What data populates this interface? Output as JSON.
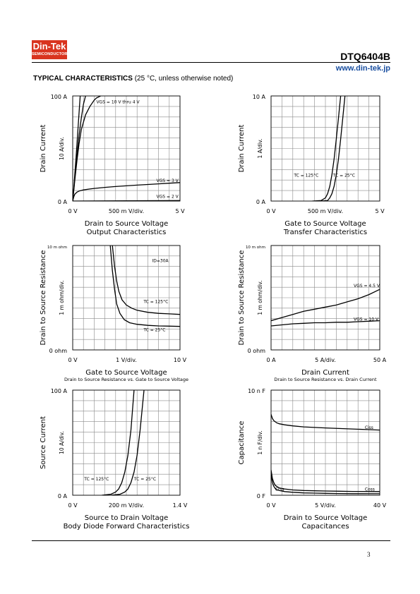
{
  "header": {
    "logo_line1": "Din-Tek",
    "logo_line2": "SEMICONDUCTOR",
    "part_number": "DTQ6404B",
    "url": "www.din-tek.jp",
    "section_title": "TYPICAL CHARACTERISTICS",
    "section_note": "(25 °C, unless otherwise noted)"
  },
  "footer": {
    "page_number": "3"
  },
  "chart_data": [
    {
      "id": "c1",
      "type": "line",
      "title": "Output Characteristics",
      "xlabel": "Drain to Source Voltage",
      "ylabel": "Drain Current",
      "y_div_label": "10  A/div.",
      "x_div_label": "500 m V/div.",
      "x_tick_min": "0  V",
      "x_tick_max": "5  V",
      "y_tick_min": "0  A",
      "y_tick_max": "100  A",
      "subtitle": "",
      "xlim": [
        0,
        5
      ],
      "ylim": [
        0,
        100
      ],
      "grid": true,
      "annotations": [
        {
          "text": "VGS = 10 V thru 4 V",
          "x": 1.1,
          "y": 93
        },
        {
          "text": "VGS = 3 V",
          "x": 3.9,
          "y": 18
        },
        {
          "text": "VGS = 2 V",
          "x": 3.9,
          "y": 3
        }
      ],
      "series": [
        {
          "x": [
            0,
            0.05,
            0.1,
            0.15,
            0.2,
            0.25,
            0.3,
            0.35
          ],
          "y": [
            0,
            12,
            26,
            40,
            55,
            70,
            85,
            100
          ]
        },
        {
          "x": [
            0,
            0.1,
            0.2,
            0.3,
            0.4,
            0.5,
            0.6
          ],
          "y": [
            0,
            22,
            44,
            63,
            79,
            92,
            100
          ]
        },
        {
          "x": [
            0,
            0.1,
            0.2,
            0.3,
            0.4,
            0.6,
            0.8,
            1.0,
            1.1,
            1.3
          ],
          "y": [
            0,
            20,
            39,
            55,
            68,
            82,
            90,
            96,
            98,
            100
          ]
        },
        {
          "x": [
            0,
            0.05,
            0.1,
            0.2,
            0.3,
            0.5,
            0.8,
            1,
            1.5,
            2,
            2.5,
            3,
            3.5,
            4,
            4.5,
            5
          ],
          "y": [
            0,
            4,
            6.5,
            8.5,
            9.5,
            10.6,
            11.5,
            12,
            13,
            13.8,
            14.5,
            15.2,
            15.8,
            16.4,
            17,
            17.6
          ]
        },
        {
          "x": [
            0,
            5
          ],
          "y": [
            0,
            0.5
          ]
        }
      ]
    },
    {
      "id": "c2",
      "type": "line",
      "title": "Transfer Characteristics",
      "xlabel": "Gate to Source Voltage",
      "ylabel": "Drain Current",
      "y_div_label": "1  A/div.",
      "x_div_label": "500 m V/div.",
      "x_tick_min": "0  V",
      "x_tick_max": "5  V",
      "y_tick_min": "0  A",
      "y_tick_max": "10  A",
      "subtitle": "",
      "xlim": [
        0,
        5
      ],
      "ylim": [
        0,
        10
      ],
      "grid": true,
      "annotations": [
        {
          "text": "TC = 125°C",
          "x": 1.05,
          "y": 2.3
        },
        {
          "text": "TC = 25°C",
          "x": 2.85,
          "y": 2.3
        }
      ],
      "series": [
        {
          "name": "TC = 125°C",
          "x": [
            1.9,
            2.3,
            2.5,
            2.6,
            2.7,
            2.8,
            2.9,
            3.0,
            3.1,
            3.2
          ],
          "y": [
            0,
            0.05,
            0.3,
            0.7,
            1.4,
            2.5,
            4.0,
            5.9,
            7.9,
            10
          ]
        },
        {
          "name": "TC = 25°C",
          "x": [
            2.3,
            2.6,
            2.7,
            2.8,
            2.9,
            3.0,
            3.1,
            3.2,
            3.3,
            3.4
          ],
          "y": [
            0,
            0.05,
            0.3,
            0.7,
            1.4,
            2.5,
            4.0,
            5.9,
            7.9,
            10
          ]
        }
      ]
    },
    {
      "id": "c3",
      "type": "line",
      "title": "",
      "subtitle": "Drain to Source Resistance vs. Gate to Source Voltage",
      "xlabel": "Gate to Source Voltage",
      "ylabel": "Drain to Source Resistance",
      "y_div_label": "1  m ohm/div.",
      "x_div_label": "1  V/div.",
      "x_tick_min": "0  V",
      "x_tick_max": "10  V",
      "y_tick_min": "0  ohm",
      "y_tick_max": "10 m ohm",
      "xlim": [
        0,
        10
      ],
      "ylim": [
        0,
        10
      ],
      "grid": true,
      "annotations": [
        {
          "text": "ID=30A",
          "x": 7.4,
          "y": 8.4
        },
        {
          "text": "TC = 125°C",
          "x": 6.6,
          "y": 4.5
        },
        {
          "text": "TC = 25°C",
          "x": 6.6,
          "y": 1.8
        }
      ],
      "series": [
        {
          "name": "TC = 125°C",
          "x": [
            3.7,
            3.9,
            4.1,
            4.3,
            4.6,
            5,
            5.5,
            6,
            7,
            8,
            9,
            10
          ],
          "y": [
            10,
            8,
            6.6,
            5.6,
            4.8,
            4.3,
            4.0,
            3.8,
            3.6,
            3.5,
            3.45,
            3.4
          ]
        },
        {
          "name": "TC = 25°C",
          "x": [
            3.5,
            3.7,
            3.9,
            4.1,
            4.4,
            4.8,
            5.3,
            6,
            7,
            8,
            9,
            10
          ],
          "y": [
            10,
            7.6,
            5.8,
            4.4,
            3.5,
            2.9,
            2.6,
            2.45,
            2.35,
            2.3,
            2.28,
            2.25
          ]
        }
      ]
    },
    {
      "id": "c4",
      "type": "line",
      "title": "",
      "subtitle": "Drain to Source Resistance vs. Drain Current",
      "xlabel": "Drain Current",
      "ylabel": "Drain to Source Resistance",
      "y_div_label": "1  m ohm/div.",
      "x_div_label": "5  A/div.",
      "x_tick_min": "0  A",
      "x_tick_max": "50  A",
      "y_tick_min": "0  ohm",
      "y_tick_max": "10 m ohm",
      "xlim": [
        0,
        50
      ],
      "ylim": [
        0,
        10
      ],
      "grid": true,
      "annotations": [
        {
          "text": "VGS = 4.5 V",
          "x": 38,
          "y": 6.0
        },
        {
          "text": "VGS = 10 V",
          "x": 38,
          "y": 2.8
        }
      ],
      "series": [
        {
          "name": "VGS = 4.5 V",
          "x": [
            0,
            5,
            10,
            15,
            20,
            25,
            30,
            35,
            40,
            45,
            50
          ],
          "y": [
            2.8,
            3.1,
            3.4,
            3.7,
            3.9,
            4.1,
            4.3,
            4.6,
            4.9,
            5.3,
            5.8
          ]
        },
        {
          "name": "VGS = 10 V",
          "x": [
            0,
            5,
            10,
            15,
            20,
            25,
            30,
            35,
            40,
            45,
            50
          ],
          "y": [
            2.3,
            2.4,
            2.5,
            2.55,
            2.6,
            2.6,
            2.65,
            2.65,
            2.7,
            2.75,
            2.8
          ]
        }
      ]
    },
    {
      "id": "c5",
      "type": "line",
      "title": "Body Diode Forward Characteristics",
      "xlabel": "Source to Drain Voltage",
      "ylabel": "Source Current",
      "y_div_label": "10  A/div.",
      "x_div_label": "200 m V/div.",
      "x_tick_min": "0  V",
      "x_tick_max": "1.4  V",
      "y_tick_min": "0  A",
      "y_tick_max": "100  A",
      "subtitle": "",
      "xlim": [
        0,
        1.4
      ],
      "ylim": [
        0,
        100
      ],
      "grid": true,
      "annotations": [
        {
          "text": "TC = 125°C",
          "x": 0.15,
          "y": 14
        },
        {
          "text": "TC = 25°C",
          "x": 0.8,
          "y": 14
        }
      ],
      "series": [
        {
          "name": "TC = 125°C",
          "x": [
            0.38,
            0.5,
            0.56,
            0.6,
            0.64,
            0.68,
            0.72,
            0.76,
            0.8
          ],
          "y": [
            0,
            1,
            3,
            6,
            12,
            22,
            38,
            62,
            100
          ]
        },
        {
          "name": "TC = 25°C",
          "x": [
            0.5,
            0.62,
            0.68,
            0.72,
            0.76,
            0.8,
            0.84,
            0.88,
            0.93
          ],
          "y": [
            0,
            1,
            3,
            6,
            12,
            22,
            38,
            62,
            100
          ]
        }
      ]
    },
    {
      "id": "c6",
      "type": "line",
      "title": "Capacitances",
      "xlabel": "Drain to Source Voltage",
      "ylabel": "Capacitance",
      "y_div_label": "1  n F/div.",
      "x_div_label": "5  V/div.",
      "x_tick_min": "0  V",
      "x_tick_max": "40  V",
      "y_tick_min": "0  F",
      "y_tick_max": "10 n F",
      "subtitle": "",
      "xlim": [
        0,
        40
      ],
      "ylim": [
        0,
        10
      ],
      "grid": true,
      "annotations": [
        {
          "text": "Ciss",
          "x": 34.5,
          "y": 6.3
        },
        {
          "text": "Crss",
          "x": 1.5,
          "y": 0.45
        },
        {
          "text": "Coss",
          "x": 34.5,
          "y": 0.45
        }
      ],
      "series": [
        {
          "name": "Ciss",
          "x": [
            0,
            0.5,
            1,
            2,
            3,
            5,
            8,
            12,
            16,
            20,
            25,
            30,
            35,
            40
          ],
          "y": [
            7.7,
            7.3,
            7.1,
            6.9,
            6.8,
            6.7,
            6.6,
            6.5,
            6.45,
            6.4,
            6.35,
            6.3,
            6.25,
            6.2
          ]
        },
        {
          "name": "Coss",
          "x": [
            0,
            0.5,
            1,
            1.5,
            2,
            3,
            5,
            8,
            12,
            16,
            20,
            25,
            30,
            40
          ],
          "y": [
            2.4,
            1.6,
            1.2,
            0.95,
            0.85,
            0.7,
            0.6,
            0.5,
            0.45,
            0.42,
            0.4,
            0.38,
            0.36,
            0.35
          ]
        },
        {
          "name": "Crss",
          "x": [
            0,
            0.5,
            1,
            1.5,
            2,
            3,
            5,
            8,
            12,
            16,
            20,
            25,
            30,
            40
          ],
          "y": [
            2.0,
            1.2,
            0.85,
            0.65,
            0.55,
            0.45,
            0.35,
            0.28,
            0.22,
            0.2,
            0.18,
            0.16,
            0.15,
            0.14
          ]
        }
      ]
    }
  ]
}
